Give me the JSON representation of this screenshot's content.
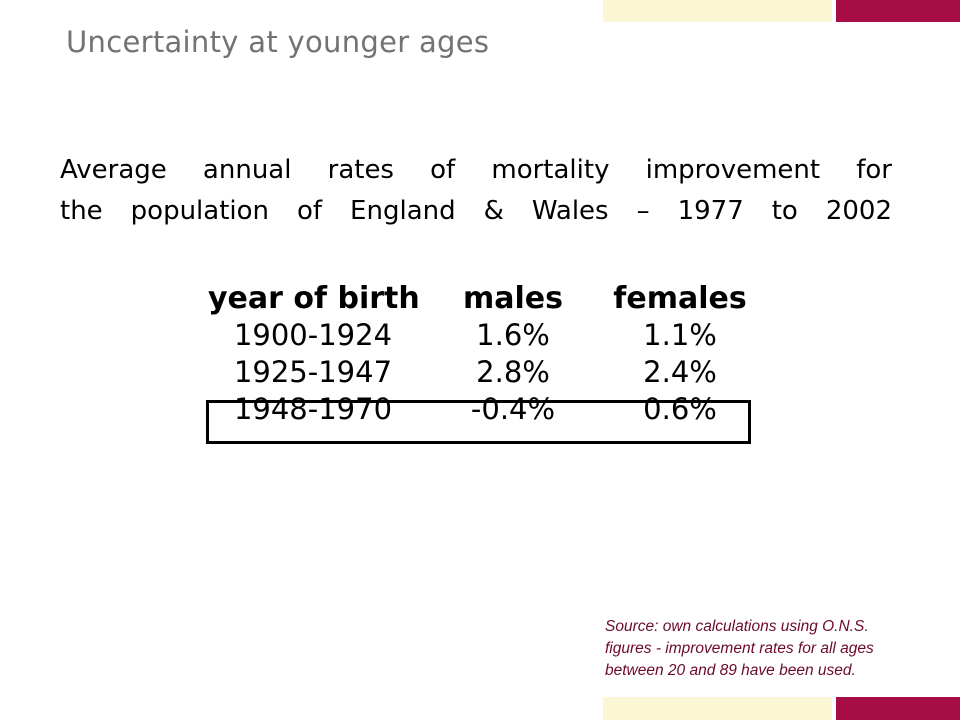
{
  "slide": {
    "title": "Uncertainty at younger ages",
    "heading_lines": [
      "Average annual rates of mortality improvement for",
      "the population of England & Wales – 1977 to 2002"
    ]
  },
  "table": {
    "headers": [
      "year of birth",
      "males",
      "females"
    ],
    "rows": [
      {
        "year": "1900-1924",
        "males": "1.6%",
        "females": "1.1%"
      },
      {
        "year": "1925-1947",
        "males": "2.8%",
        "females": "2.4%"
      },
      {
        "year": "1948-1970",
        "males": "-0.4%",
        "females": "0.6%"
      }
    ]
  },
  "source_note_lines": [
    "Source: own calculations using O.N.S.",
    "figures - improvement rates for all ages",
    "between 20 and 89 have been used."
  ],
  "colors": {
    "maroon": "#a50d44",
    "cream": "#fbf6d4",
    "title_gray": "#737373",
    "note": "#6b0a2f"
  }
}
